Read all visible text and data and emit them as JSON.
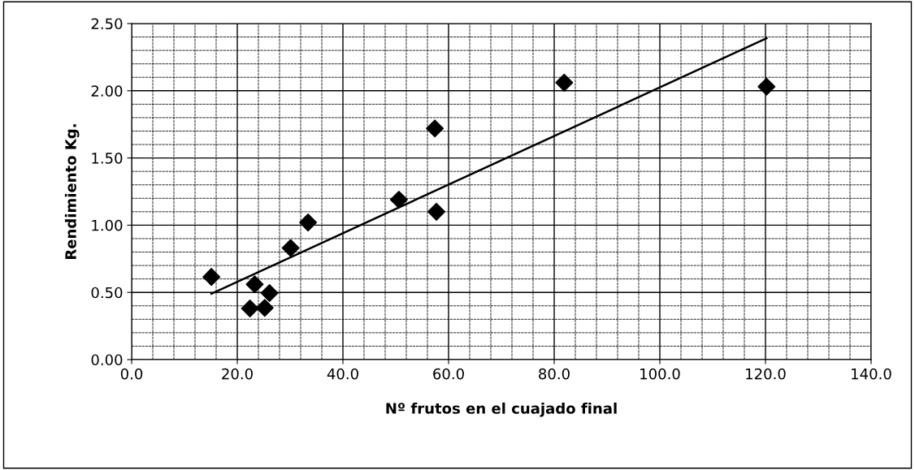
{
  "chart_data": {
    "type": "scatter",
    "xlabel": "Nº frutos en el cuajado final",
    "ylabel": "Rendimiento Kg.",
    "xlim": [
      0,
      140
    ],
    "xticks": [
      {
        "value": 0,
        "label": "0.0"
      },
      {
        "value": 20,
        "label": "20.0"
      },
      {
        "value": 40,
        "label": "40.0"
      },
      {
        "value": 60,
        "label": "60.0"
      },
      {
        "value": 80,
        "label": "80.0"
      },
      {
        "value": 100,
        "label": "100.0"
      },
      {
        "value": 120,
        "label": "120.0"
      },
      {
        "value": 140,
        "label": "140.0"
      }
    ],
    "ylim": [
      0,
      2.5
    ],
    "yticks": [
      {
        "value": 0,
        "label": "0.00"
      },
      {
        "value": 0.5,
        "label": "0.50"
      },
      {
        "value": 1,
        "label": "1.00"
      },
      {
        "value": 1.5,
        "label": "1.50"
      },
      {
        "value": 2,
        "label": "2.00"
      },
      {
        "value": 2.5,
        "label": "2.50"
      }
    ],
    "grid": true,
    "legend": false,
    "marker": "diamond",
    "series": [
      {
        "color": "#000000",
        "x": [
          15.1,
          23.3,
          26.1,
          22.4,
          25.2,
          30.1,
          33.4,
          50.6,
          57.4,
          57.7,
          81.9,
          120.2
        ],
        "values": [
          0.615,
          0.56,
          0.495,
          0.38,
          0.385,
          0.83,
          1.02,
          1.19,
          1.72,
          1.1,
          2.06,
          2.03
        ]
      },
      {
        "type": "line",
        "marker": "none",
        "color": "#000000",
        "x": [
          15.1,
          120.2
        ],
        "values": [
          0.49,
          2.39
        ]
      }
    ]
  }
}
